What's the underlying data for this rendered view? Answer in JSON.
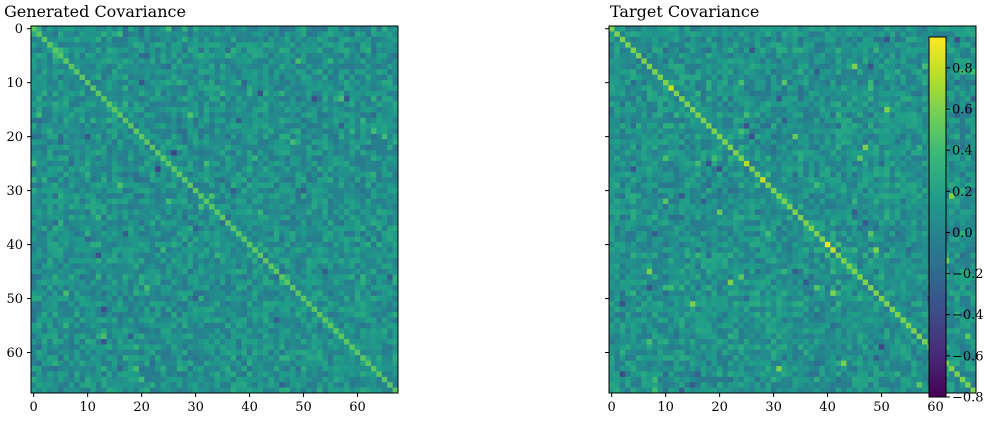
{
  "chart_data": [
    {
      "type": "heatmap",
      "title": "Generated Covariance",
      "matrix_size": 68,
      "x_ticks": [
        "0",
        "10",
        "20",
        "30",
        "40",
        "50",
        "60"
      ],
      "y_ticks": [
        "0",
        "10",
        "20",
        "30",
        "40",
        "50",
        "60"
      ],
      "diagonal_value": 0.5,
      "off_diagonal_range": [
        -0.55,
        0.5
      ],
      "colormap": "viridis"
    },
    {
      "type": "heatmap",
      "title": "Target Covariance",
      "matrix_size": 68,
      "x_ticks": [
        "0",
        "10",
        "20",
        "30",
        "40",
        "50",
        "60"
      ],
      "y_ticks": [
        "0",
        "10",
        "20",
        "30",
        "40",
        "50",
        "60"
      ],
      "diagonal_value": 0.6,
      "diagonal_peaks": [
        {
          "index": 11,
          "value": 0.8
        },
        {
          "index": 25,
          "value": 0.75
        },
        {
          "index": 28,
          "value": 0.8
        },
        {
          "index": 40,
          "value": 0.9
        },
        {
          "index": 41,
          "value": 0.8
        }
      ],
      "off_diagonal_range": [
        -0.8,
        0.6
      ],
      "colormap": "viridis"
    }
  ],
  "colorbar": {
    "vmin": -0.8,
    "vmax": 0.95,
    "ticks": [
      "0.8",
      "0.6",
      "0.4",
      "0.2",
      "0.0",
      "−0.2",
      "−0.4",
      "−0.6",
      "−0.8"
    ],
    "tick_values": [
      0.8,
      0.6,
      0.4,
      0.2,
      0.0,
      -0.2,
      -0.4,
      -0.6,
      -0.8
    ]
  },
  "colors": {
    "viridis": [
      "#440154",
      "#482878",
      "#3e4989",
      "#31688e",
      "#26828e",
      "#1f9e89",
      "#35b779",
      "#6ece58",
      "#b5de2b",
      "#fde725"
    ]
  }
}
